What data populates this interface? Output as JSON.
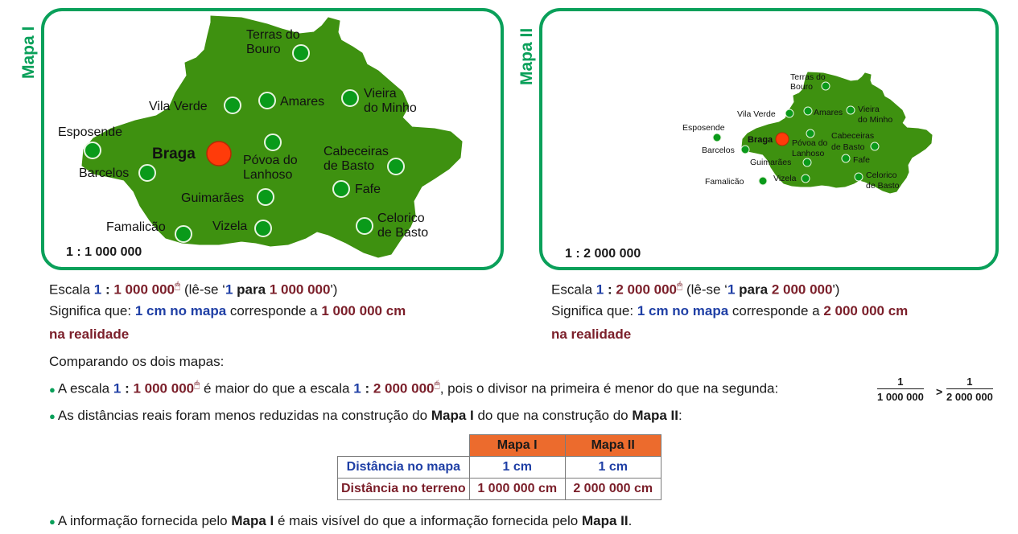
{
  "map1": {
    "title": "Mapa I",
    "scale": "1 : 1 000 000",
    "labels": {
      "terras_do_bouro": [
        "Terras do",
        "Bouro"
      ],
      "vila_verde": "Vila Verde",
      "amares": "Amares",
      "vieira_do_minho": [
        "Vieira",
        "do Minho"
      ],
      "esposende": "Esposende",
      "braga": "Braga",
      "povoa_do_lanhoso": [
        "Póvoa do",
        "Lanhoso"
      ],
      "cabeceiras_de_basto": [
        "Cabeceiras",
        "de Basto"
      ],
      "barcelos": "Barcelos",
      "guimaraes": "Guimarães",
      "fafe": "Fafe",
      "famalicao": "Famalicão",
      "vizela": "Vizela",
      "celorico_de_basto": [
        "Celorico",
        "de Basto"
      ]
    }
  },
  "map2": {
    "title": "Mapa II",
    "scale": "1 : 2 000 000",
    "labels": {
      "terras_do_bouro": [
        "Terras do",
        "Bouro"
      ],
      "vila_verde": "Vila Verde",
      "amares": "Amares",
      "vieira_do_minho": [
        "Vieira",
        "do Minho"
      ],
      "esposende": "Esposende",
      "braga": "Braga",
      "povoa_do_lanhoso": [
        "Póvoa do",
        "Lanhoso"
      ],
      "cabeceiras_de_basto": [
        "Cabeceiras",
        "de Basto"
      ],
      "barcelos": "Barcelos",
      "guimaraes": "Guimarães",
      "fafe": "Fafe",
      "famalicao": "Famalicão",
      "vizela": "Vizela",
      "celorico_de_basto": [
        "Celorico",
        "de Basto"
      ]
    }
  },
  "explain1": {
    "escala_word": "Escala",
    "n1": "1",
    "sep": ":",
    "den": "1 000 000",
    "lese_open": "(lê-se ‘",
    "lese_n1": "1",
    "lese_para": "para",
    "lese_den": "1 000 000",
    "lese_close": "')",
    "significa": "Significa que:",
    "cm_mapa": "1 cm no mapa",
    "corresponde": "corresponde a",
    "real_val": "1 000 000 cm",
    "na_realidade": "na realidade"
  },
  "explain2": {
    "escala_word": "Escala",
    "n1": "1",
    "sep": ":",
    "den": "2 000 000",
    "lese_open": "(lê-se ‘",
    "lese_n1": "1",
    "lese_para": "para",
    "lese_den": "2 000 000",
    "lese_close": "')",
    "significa": "Significa que:",
    "cm_mapa": "1 cm no mapa",
    "corresponde": "corresponde a",
    "real_val": "2 000 000 cm",
    "na_realidade": "na realidade"
  },
  "comparando": "Comparando os dois mapas:",
  "bullet1": {
    "a": "A escala",
    "s1_n": "1",
    "s1_sep": ":",
    "s1_den": "1 000 000",
    "b": "é maior do que a escala",
    "s2_n": "1",
    "s2_sep": ":",
    "s2_den": "2 000 000",
    "c": ", pois o divisor na primeira é menor do que na segunda:",
    "frac1_num": "1",
    "frac1_den": "1 000 000",
    "gt": ">",
    "frac2_num": "1",
    "frac2_den": "2 000 000"
  },
  "bullet2": {
    "a": "As distâncias reais foram menos reduzidas na construção do",
    "m1": "Mapa I",
    "b": "do que na construção do",
    "m2": "Mapa II",
    "c": ":"
  },
  "table": {
    "headers": [
      "Mapa I",
      "Mapa II"
    ],
    "rows": [
      {
        "label": "Distância no mapa",
        "values": [
          "1 cm",
          "1 cm"
        ]
      },
      {
        "label": "Distância no terreno",
        "values": [
          "1 000 000 cm",
          "2 000 000 cm"
        ]
      }
    ]
  },
  "bullet3": {
    "a": "A informação fornecida pelo",
    "m1": "Mapa I",
    "b": "é mais visível do que a informação fornecida pelo",
    "m2": "Mapa II",
    "c": "."
  },
  "colors": {
    "green_frame": "#0aa05a",
    "map_fill": "#3e9110",
    "dot": "#0a9a1a",
    "braga_dot": "#ff3b0a",
    "blue": "#1f3fa5",
    "red": "#7b1f2a",
    "table_header": "#ec6b2d"
  }
}
